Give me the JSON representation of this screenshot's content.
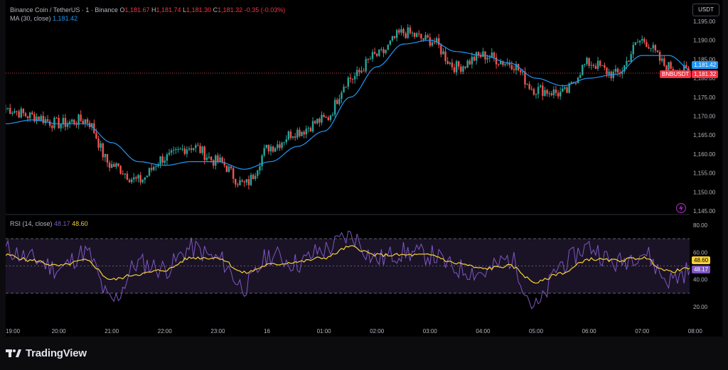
{
  "header": {
    "symbol": "Binance Coin / TetherUS · 1 · Binance",
    "ohlc": {
      "o_label": "O",
      "o": "1,181.67",
      "h_label": "H",
      "h": "1,181.74",
      "l_label": "L",
      "l": "1,181.30",
      "c_label": "C",
      "c": "1,181.32",
      "change": "-0.35 (-0.03%)"
    },
    "ma_label": "MA (30, close)",
    "ma_value": "1,181.42",
    "currency_button": "USDT"
  },
  "rsi_legend": {
    "label": "RSI (14, close)",
    "rsi_value": "48.17",
    "ma_value": "48.60"
  },
  "price_axis_ticks": [
    "1,195.00",
    "1,190.00",
    "1,185.00",
    "1,180.00",
    "1,175.00",
    "1,170.00",
    "1,165.00",
    "1,160.00",
    "1,155.00",
    "1,150.00",
    "1,145.00"
  ],
  "rsi_axis_ticks": [
    "80.00",
    "60.00",
    "40.00",
    "20.00"
  ],
  "time_ticks": [
    "19:00",
    "20:00",
    "21:00",
    "22:00",
    "23:00",
    "16",
    "01:00",
    "02:00",
    "03:00",
    "04:00",
    "05:00",
    "06:00",
    "07:00",
    "08:00"
  ],
  "badges": {
    "ma": "1,181.42",
    "symbol": "BNBUSDT",
    "price": "1,181.32",
    "rsi": "48.17",
    "rsi_ma": "48.60"
  },
  "footer": {
    "brand": "TradingView"
  },
  "colors": {
    "up": "#26a69a",
    "down": "#ef5350",
    "ma": "#2196f3",
    "rsi": "#7e57c2",
    "rsi_ma": "#f7d038",
    "price_line": "#f23645"
  },
  "chart_data": [
    {
      "type": "line",
      "title": "Binance Coin / TetherUS · 1 · Binance",
      "note_series": "candlestick price with MA(30)",
      "x": [
        "19:00",
        "19:30",
        "20:00",
        "20:30",
        "21:00",
        "21:30",
        "22:00",
        "22:30",
        "23:00",
        "23:30",
        "00:00",
        "00:30",
        "01:00",
        "01:30",
        "02:00",
        "02:30",
        "03:00",
        "03:30",
        "04:00",
        "04:30",
        "05:00",
        "05:30",
        "06:00",
        "06:30",
        "07:00",
        "07:30",
        "08:00"
      ],
      "series": [
        {
          "name": "BNBUSDT",
          "values": [
            1172,
            1170,
            1168,
            1169,
            1157,
            1153,
            1159,
            1162,
            1158,
            1152,
            1162,
            1166,
            1169,
            1180,
            1186,
            1192,
            1190,
            1183,
            1186,
            1184,
            1177,
            1176,
            1184,
            1181,
            1190,
            1183,
            1181.32
          ]
        },
        {
          "name": "MA (30, close)",
          "values": [
            1168,
            1169,
            1168,
            1168,
            1163,
            1158,
            1157,
            1158,
            1158,
            1156,
            1158,
            1162,
            1166,
            1175,
            1183,
            1189,
            1190,
            1187,
            1186,
            1184,
            1180,
            1178,
            1180,
            1181,
            1186,
            1186,
            1181.42
          ]
        }
      ],
      "ylim": [
        1145,
        1197
      ]
    },
    {
      "type": "line",
      "title": "RSI (14, close)",
      "x": [
        "19:00",
        "19:30",
        "20:00",
        "20:30",
        "21:00",
        "21:30",
        "22:00",
        "22:30",
        "23:00",
        "23:30",
        "00:00",
        "00:30",
        "01:00",
        "01:30",
        "02:00",
        "02:30",
        "03:00",
        "03:30",
        "04:00",
        "04:30",
        "05:00",
        "05:30",
        "06:00",
        "06:30",
        "07:00",
        "07:30",
        "08:00"
      ],
      "series": [
        {
          "name": "RSI",
          "values": [
            62,
            55,
            48,
            60,
            24,
            52,
            48,
            63,
            55,
            35,
            58,
            52,
            62,
            72,
            55,
            60,
            58,
            48,
            45,
            55,
            20,
            52,
            64,
            52,
            60,
            40,
            48.17
          ]
        },
        {
          "name": "RSI MA",
          "values": [
            58,
            54,
            50,
            54,
            40,
            44,
            47,
            56,
            56,
            45,
            51,
            53,
            56,
            64,
            58,
            58,
            58,
            52,
            48,
            50,
            38,
            45,
            55,
            54,
            56,
            46,
            48.6
          ]
        }
      ],
      "bands": [
        70,
        50,
        30
      ],
      "ylim": [
        12,
        84
      ]
    }
  ]
}
